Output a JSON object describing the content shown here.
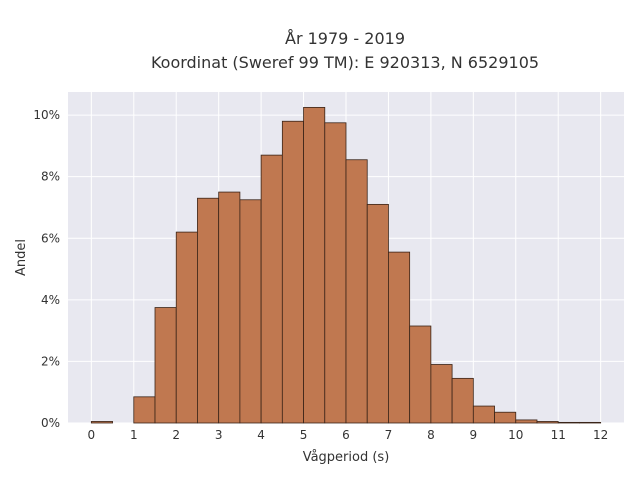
{
  "chart_data": {
    "type": "bar",
    "title": "År 1979 - 2019",
    "subtitle": "Koordinat (Sweref 99 TM): E 920313, N 6529105",
    "xlabel": "Vågperiod (s)",
    "ylabel": "Andel",
    "bin_width": 0.5,
    "bins_start": [
      0,
      1,
      1.5,
      2,
      2.5,
      3,
      3.5,
      4,
      4.5,
      5,
      5.5,
      6,
      6.5,
      7,
      7.5,
      8,
      8.5,
      9,
      9.5,
      10,
      10.5,
      11,
      11.5
    ],
    "values": [
      0.05,
      0.85,
      3.75,
      6.2,
      7.3,
      7.5,
      7.25,
      8.7,
      9.8,
      10.25,
      9.75,
      8.55,
      7.1,
      5.55,
      3.15,
      1.9,
      1.45,
      0.55,
      0.35,
      0.1,
      0.05,
      0.02,
      0.02
    ],
    "xticks": [
      "0",
      "1",
      "2",
      "3",
      "4",
      "5",
      "6",
      "7",
      "8",
      "9",
      "10",
      "11",
      "12"
    ],
    "yticks": [
      "0%",
      "2%",
      "4%",
      "6%",
      "8%",
      "10%"
    ],
    "xlim": [
      -0.55,
      12.55
    ],
    "ylim": [
      0,
      10.75
    ],
    "grid": true,
    "colors": {
      "bar_fill": "#c07850",
      "bar_edge": "#3a2418",
      "plot_bg": "#e8e8f0",
      "grid": "#ffffff"
    }
  }
}
